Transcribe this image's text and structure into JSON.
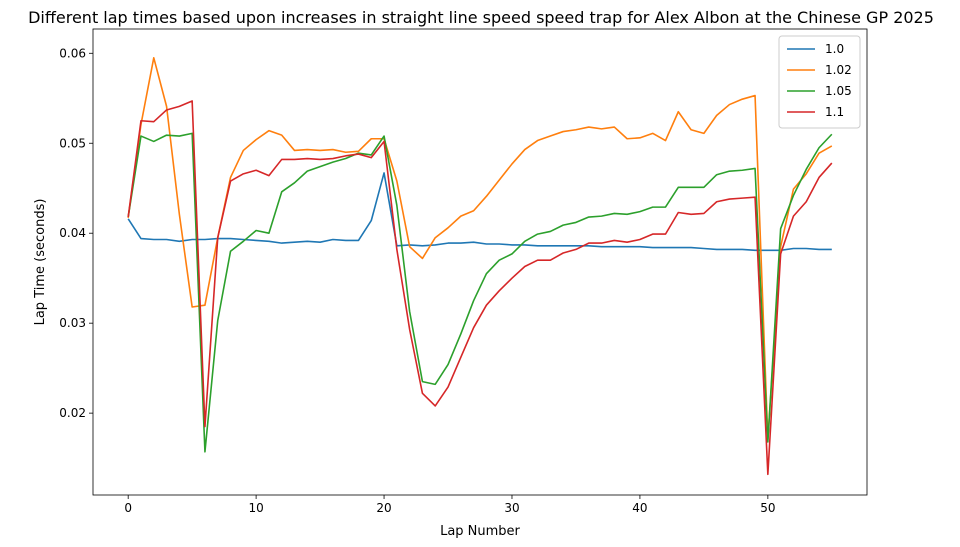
{
  "chart_data": {
    "type": "line",
    "title": "Different lap times based upon increases in straight line speed speed trap for Alex Albon at the Chinese GP 2025",
    "xlabel": "Lap Number",
    "ylabel": "Lap Time (seconds)",
    "xlim": [
      -2.75,
      57.75
    ],
    "ylim": [
      0.0109,
      0.0627
    ],
    "xticks": [
      0,
      10,
      20,
      30,
      40,
      50
    ],
    "yticks": [
      0.02,
      0.03,
      0.04,
      0.05,
      0.06
    ],
    "ytick_labels": [
      "0.02",
      "0.03",
      "0.04",
      "0.05",
      "0.06"
    ],
    "legend_position": "top-right",
    "grid": false,
    "x": [
      0,
      1,
      2,
      3,
      4,
      5,
      6,
      7,
      8,
      9,
      10,
      11,
      12,
      13,
      14,
      15,
      16,
      17,
      18,
      19,
      20,
      21,
      22,
      23,
      24,
      25,
      26,
      27,
      28,
      29,
      30,
      31,
      32,
      33,
      34,
      35,
      36,
      37,
      38,
      39,
      40,
      41,
      42,
      43,
      44,
      45,
      46,
      47,
      48,
      49,
      50,
      51,
      52,
      53,
      54,
      55
    ],
    "series": [
      {
        "name": "1.0",
        "color": "#1f77b4",
        "values": [
          0.0416,
          0.0394,
          0.0393,
          0.0393,
          0.0391,
          0.0393,
          0.0393,
          0.0394,
          0.0394,
          0.0393,
          0.0392,
          0.0391,
          0.0389,
          0.039,
          0.0391,
          0.039,
          0.0393,
          0.0392,
          0.0392,
          0.0414,
          0.0467,
          0.0386,
          0.0387,
          0.0386,
          0.0387,
          0.0389,
          0.0389,
          0.039,
          0.0388,
          0.0388,
          0.0387,
          0.0387,
          0.0386,
          0.0386,
          0.0386,
          0.0386,
          0.0386,
          0.0385,
          0.0385,
          0.0385,
          0.0385,
          0.0384,
          0.0384,
          0.0384,
          0.0384,
          0.0383,
          0.0382,
          0.0382,
          0.0382,
          0.0381,
          0.0381,
          0.0381,
          0.0383,
          0.0383,
          0.0382,
          0.0382
        ]
      },
      {
        "name": "1.02",
        "color": "#ff7f0e",
        "values": [
          0.0417,
          0.0521,
          0.0595,
          0.0541,
          0.0421,
          0.0318,
          0.032,
          0.0395,
          0.0462,
          0.0492,
          0.0504,
          0.0514,
          0.0509,
          0.0492,
          0.0493,
          0.0492,
          0.0493,
          0.049,
          0.0491,
          0.0505,
          0.0505,
          0.0458,
          0.0385,
          0.0372,
          0.0395,
          0.0406,
          0.0419,
          0.0425,
          0.0441,
          0.0459,
          0.0477,
          0.0493,
          0.0503,
          0.0508,
          0.0513,
          0.0515,
          0.0518,
          0.0516,
          0.0518,
          0.0505,
          0.0506,
          0.0511,
          0.0503,
          0.0535,
          0.0515,
          0.0511,
          0.0531,
          0.0543,
          0.0549,
          0.0553,
          0.0171,
          0.0385,
          0.0449,
          0.0466,
          0.0489,
          0.0497
        ]
      },
      {
        "name": "1.05",
        "color": "#2ca02c",
        "values": [
          0.0418,
          0.0508,
          0.0502,
          0.0509,
          0.0508,
          0.0511,
          0.0157,
          0.0303,
          0.038,
          0.0391,
          0.0403,
          0.04,
          0.0446,
          0.0456,
          0.0469,
          0.0474,
          0.0479,
          0.0483,
          0.0489,
          0.0487,
          0.0508,
          0.0431,
          0.0313,
          0.0235,
          0.0232,
          0.0254,
          0.0288,
          0.0325,
          0.0355,
          0.037,
          0.0377,
          0.0391,
          0.0399,
          0.0402,
          0.0409,
          0.0412,
          0.0418,
          0.0419,
          0.0422,
          0.0421,
          0.0424,
          0.0429,
          0.0429,
          0.0451,
          0.0451,
          0.0451,
          0.0465,
          0.0469,
          0.047,
          0.0472,
          0.0168,
          0.0405,
          0.0442,
          0.0471,
          0.0495,
          0.051
        ]
      },
      {
        "name": "1.1",
        "color": "#d62728",
        "values": [
          0.0418,
          0.0525,
          0.0524,
          0.0537,
          0.0541,
          0.0547,
          0.0185,
          0.0395,
          0.0458,
          0.0466,
          0.047,
          0.0464,
          0.0482,
          0.0482,
          0.0483,
          0.0482,
          0.0483,
          0.0486,
          0.0488,
          0.0484,
          0.0502,
          0.0382,
          0.0293,
          0.0222,
          0.0208,
          0.0229,
          0.0262,
          0.0295,
          0.032,
          0.0336,
          0.035,
          0.0363,
          0.037,
          0.037,
          0.0378,
          0.0382,
          0.0389,
          0.0389,
          0.0392,
          0.039,
          0.0393,
          0.0399,
          0.0399,
          0.0423,
          0.0421,
          0.0422,
          0.0435,
          0.0438,
          0.0439,
          0.044,
          0.0132,
          0.0377,
          0.0419,
          0.0435,
          0.0462,
          0.0478
        ]
      }
    ]
  }
}
